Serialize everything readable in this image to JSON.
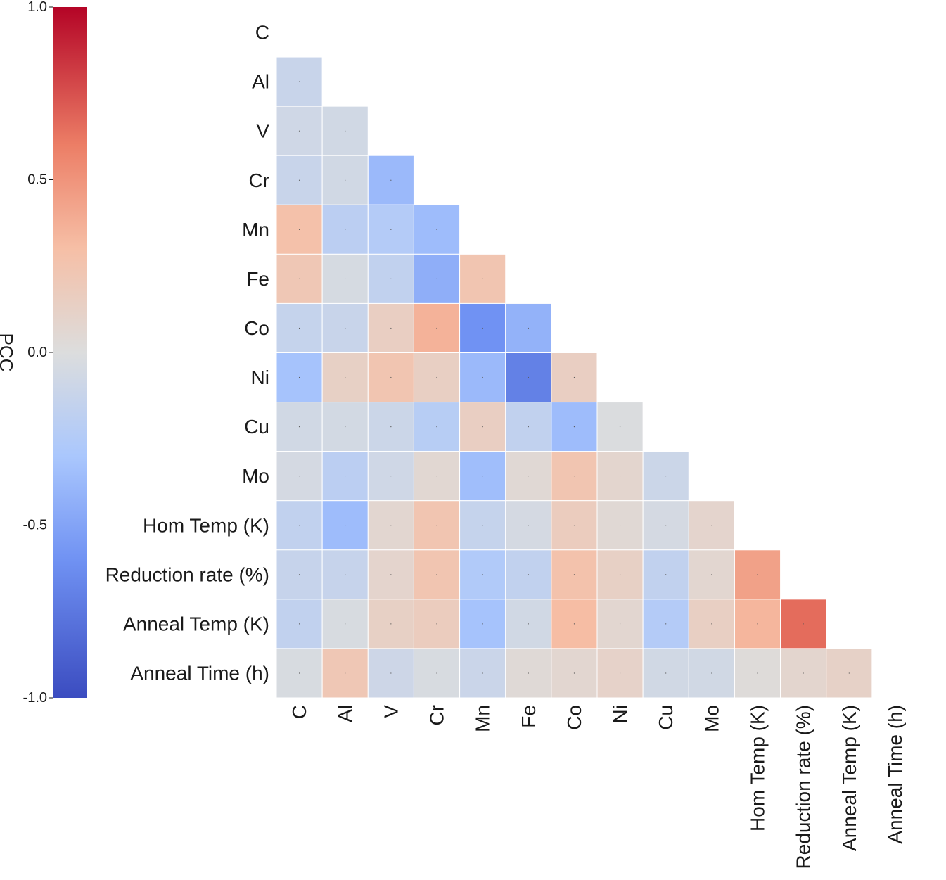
{
  "chart_data": {
    "type": "heatmap",
    "variant": "lower-triangle correlation matrix",
    "labels": [
      "C",
      "Al",
      "V",
      "Cr",
      "Mn",
      "Fe",
      "Co",
      "Ni",
      "Cu",
      "Mo",
      "Hom Temp (K)",
      "Reduction rate (%)",
      "Anneal Temp (K)",
      "Anneal Time (h)"
    ],
    "values": [
      [],
      [
        -0.12
      ],
      [
        -0.08,
        -0.07
      ],
      [
        -0.12,
        -0.07,
        -0.38
      ],
      [
        0.28,
        -0.2,
        -0.24,
        -0.36
      ],
      [
        0.22,
        -0.04,
        -0.16,
        -0.44,
        0.24
      ],
      [
        -0.14,
        -0.12,
        0.15,
        0.36,
        -0.6,
        -0.42
      ],
      [
        -0.32,
        0.13,
        0.24,
        0.14,
        -0.38,
        -0.7,
        0.15
      ],
      [
        -0.07,
        -0.06,
        -0.1,
        -0.22,
        0.15,
        -0.16,
        -0.36,
        -0.01
      ],
      [
        -0.05,
        -0.2,
        -0.08,
        0.06,
        -0.35,
        0.05,
        0.24,
        0.08,
        -0.1
      ],
      [
        -0.16,
        -0.36,
        0.07,
        0.24,
        -0.14,
        -0.05,
        0.17,
        0.05,
        -0.05,
        0.09
      ],
      [
        -0.13,
        -0.13,
        0.09,
        0.24,
        -0.26,
        -0.16,
        0.27,
        0.13,
        -0.16,
        0.07,
        0.44
      ],
      [
        -0.16,
        -0.03,
        0.13,
        0.17,
        -0.32,
        -0.07,
        0.31,
        0.07,
        -0.24,
        0.14,
        0.34,
        0.66
      ],
      [
        -0.03,
        0.22,
        -0.09,
        -0.03,
        -0.11,
        0.04,
        0.07,
        0.11,
        -0.07,
        -0.07,
        0.02,
        0.08,
        0.12
      ]
    ],
    "colorbar": {
      "title": "PCC",
      "min": -1.0,
      "max": 1.0,
      "ticks": [
        -1.0,
        -0.5,
        0.0,
        0.5,
        1.0
      ],
      "tick_labels": [
        "-1.0",
        "-0.5",
        "0.0",
        "0.5",
        "1.0"
      ]
    },
    "colormap": "coolwarm",
    "colormap_stops": [
      [
        "#3b4cc0",
        -1.0
      ],
      [
        "#7092f3",
        -0.6
      ],
      [
        "#aac7fd",
        -0.3
      ],
      [
        "#dcdddd",
        0.0
      ],
      [
        "#f6bfa6",
        0.3
      ],
      [
        "#ec7e66",
        0.6
      ],
      [
        "#b40426",
        1.0
      ]
    ]
  }
}
